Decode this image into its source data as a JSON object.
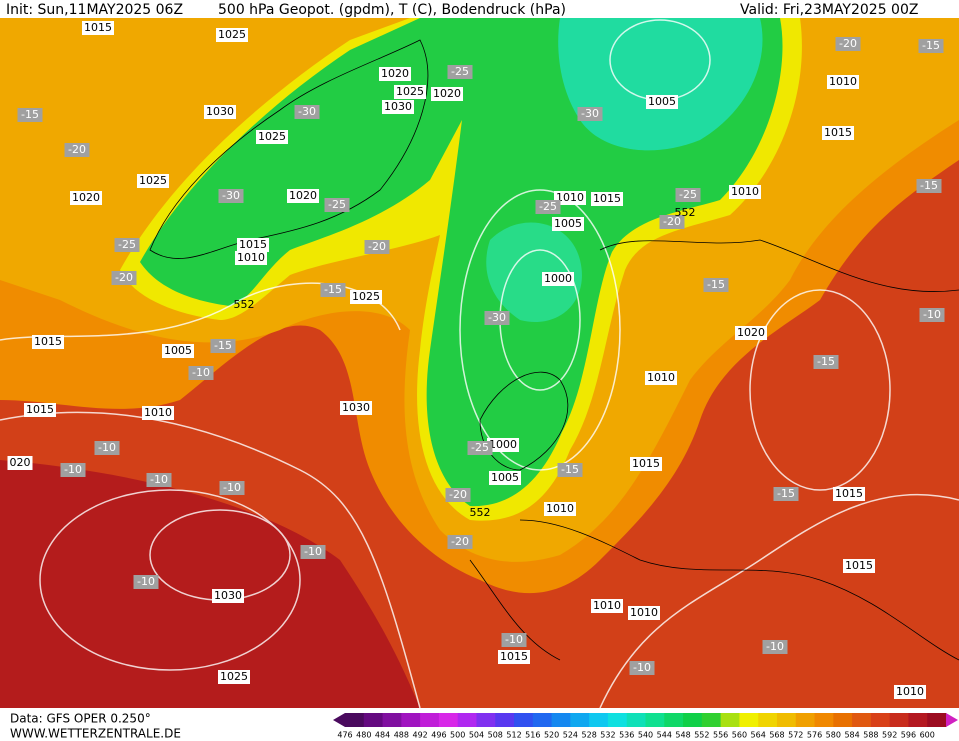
{
  "header": {
    "init": "Init: Sun,11MAY2025 06Z",
    "title": "500 hPa Geopot. (gpdm), T (C), Bodendruck (hPa)",
    "valid": "Valid: Fri,23MAY2025 00Z"
  },
  "footer": {
    "data": "Data: GFS OPER 0.250°",
    "site": "WWW.WETTERZENTRALE.DE"
  },
  "colorbar": {
    "labels": [
      476,
      480,
      484,
      488,
      492,
      496,
      500,
      504,
      508,
      512,
      516,
      520,
      524,
      528,
      532,
      536,
      540,
      544,
      548,
      552,
      556,
      560,
      564,
      568,
      572,
      576,
      580,
      584,
      588,
      592,
      596,
      600
    ],
    "colors": [
      "#4a0a5e",
      "#640a80",
      "#8010a0",
      "#a014c0",
      "#c01ed8",
      "#d828e8",
      "#b028f0",
      "#8030f0",
      "#5838f0",
      "#3050f0",
      "#2068f0",
      "#1488f0",
      "#10a8f0",
      "#10c8f0",
      "#10e0e0",
      "#10e0b8",
      "#10e090",
      "#10d868",
      "#10d048",
      "#30d030",
      "#a8e010",
      "#f0f000",
      "#f0d400",
      "#f0bc00",
      "#f0a000",
      "#f08800",
      "#e87000",
      "#e05810",
      "#d84018",
      "#c82c1c",
      "#b41820",
      "#9c0c20"
    ]
  },
  "isobar_labels": [
    "1015",
    "1025",
    "1020",
    "1025",
    "1030",
    "1020",
    "1030",
    "1025",
    "1025",
    "1020",
    "1020",
    "1015",
    "1010",
    "1025",
    "1015",
    "1005",
    "1015",
    "1010",
    "1030",
    "020",
    "1030",
    "1025",
    "1010",
    "1015",
    "1005",
    "1000",
    "1000",
    "1005",
    "1010",
    "1015",
    "1010",
    "1020",
    "1005",
    "1010",
    "1015",
    "1010",
    "1015",
    "1015",
    "1010",
    "1010",
    "1015",
    "1010"
  ],
  "temperature_labels": [
    "-15",
    "-20",
    "-25",
    "-20",
    "-30",
    "-30",
    "-25",
    "-25",
    "-20",
    "-15",
    "-15",
    "-10",
    "-10",
    "-10",
    "-10",
    "-10",
    "-10",
    "-10",
    "-30",
    "-25",
    "-25",
    "-20",
    "-30",
    "-25",
    "-20",
    "-20",
    "-15",
    "-15",
    "-15",
    "-15",
    "-10",
    "-15",
    "-20",
    "-15",
    "-10",
    "-10",
    "-10"
  ],
  "contour_labels": [
    "552",
    "552",
    "552"
  ]
}
